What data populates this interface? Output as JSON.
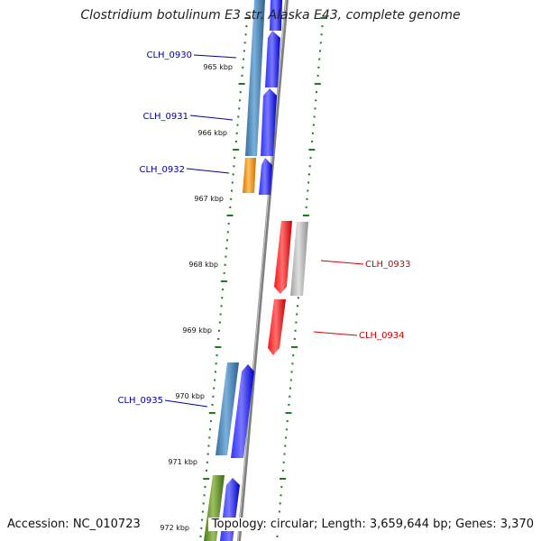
{
  "title": "Clostridium botulinum E3 str. Alaska E43, complete genome",
  "accession": "Accession: NC_010723",
  "topology": "Topology: circular; Length: 3,659,644 bp; Genes: 3,370",
  "colors": {
    "backbone": "#8c8c8c",
    "tick": "#1e7a1e",
    "label_left": "#00009c",
    "label_right": "#d00000",
    "gene_blue": "#0000e6",
    "gene_steel": "#4682b4",
    "gene_orange": "#f0900a",
    "gene_red": "#e60000",
    "gene_gray": "#b4b4b4",
    "gene_green": "#5a8c1e"
  },
  "kbp_ticks": [
    "965 kbp",
    "966 kbp",
    "967 kbp",
    "968 kbp",
    "969 kbp",
    "970 kbp",
    "971 kbp",
    "972 kbp"
  ],
  "gene_labels": {
    "clh_0930": "CLH_0930",
    "clh_0931": "CLH_0931",
    "clh_0932": "CLH_0932",
    "clh_0933": "CLH_0933",
    "clh_0934": "CLH_0934",
    "clh_0935": "CLH_0935"
  }
}
